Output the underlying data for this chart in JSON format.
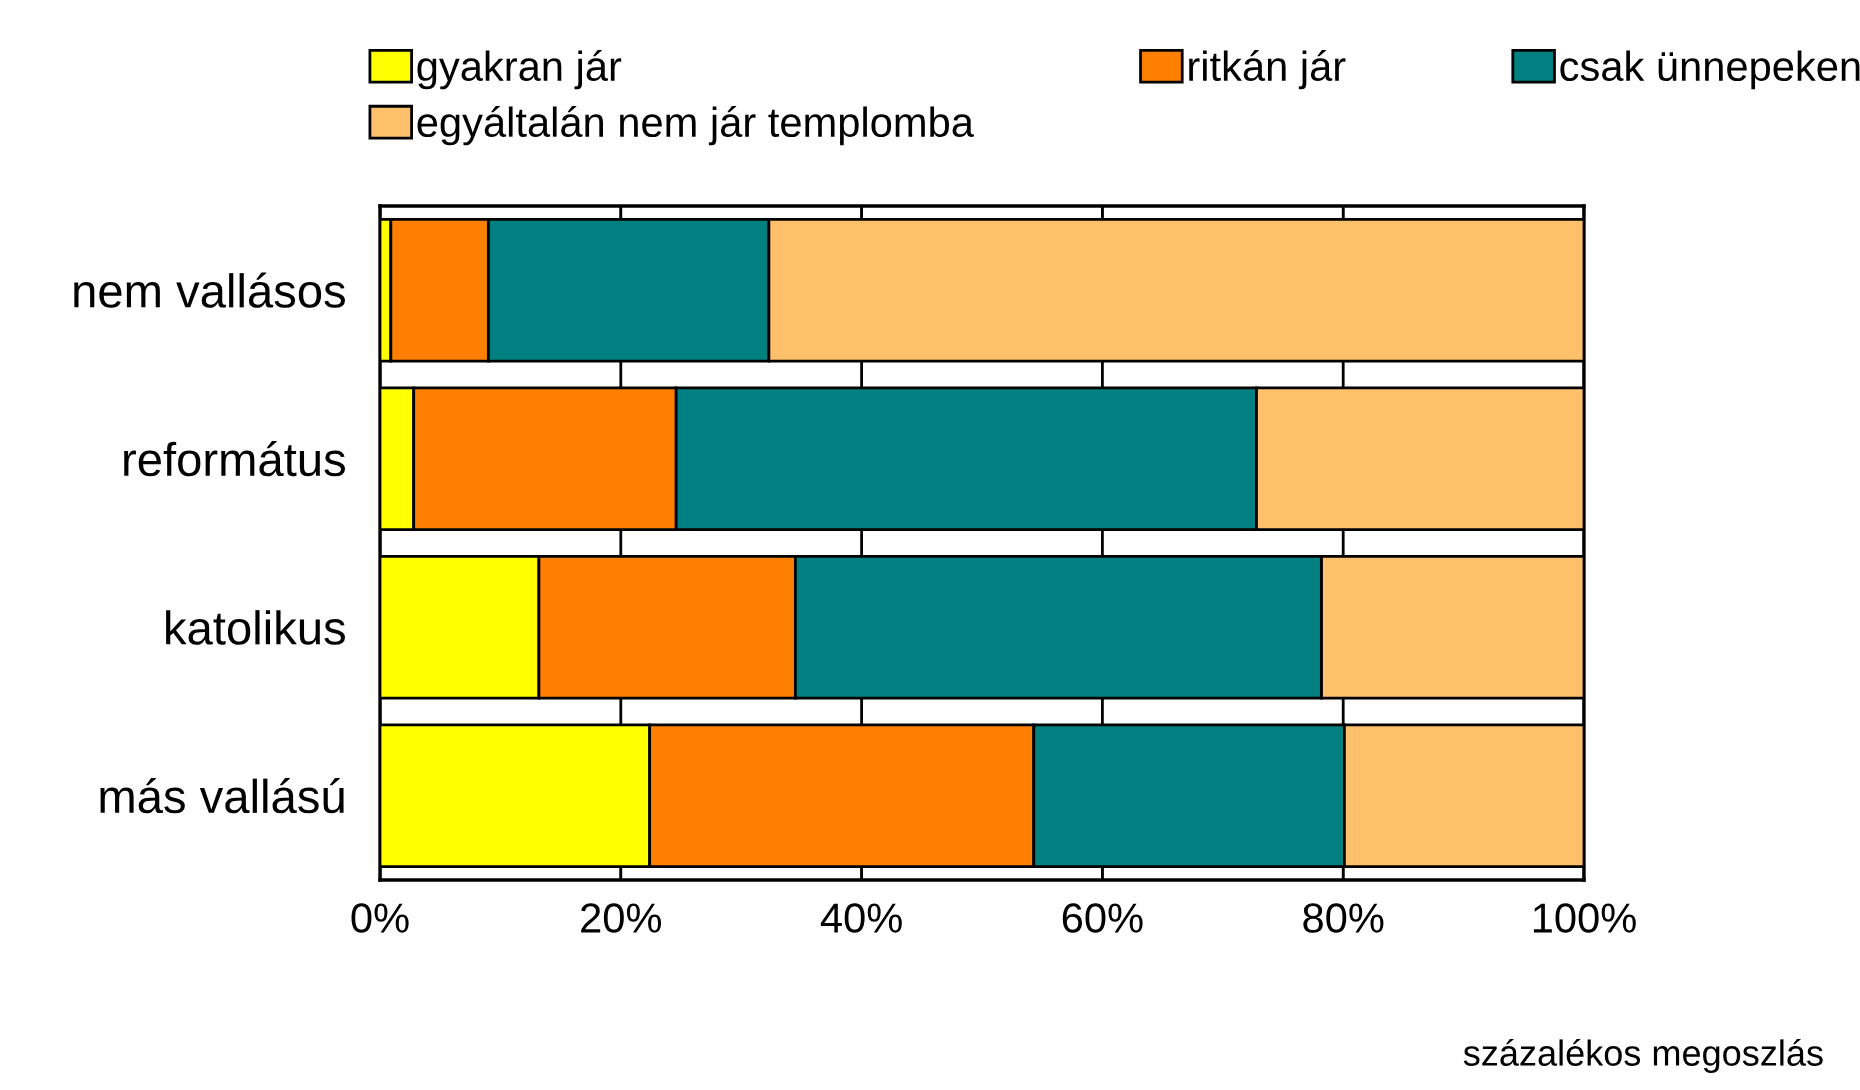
{
  "chart_data": {
    "type": "bar",
    "orientation": "horizontal",
    "stacked": true,
    "categories": [
      "nem vallásos",
      "református",
      "katolikus",
      "más vallású"
    ],
    "series": [
      {
        "name": "gyakran jár",
        "color": "#ffff00",
        "values": [
          0.9,
          2.8,
          13.2,
          22.4
        ]
      },
      {
        "name": "ritkán jár",
        "color": "#ff8000",
        "values": [
          8.1,
          21.8,
          21.3,
          31.9
        ]
      },
      {
        "name": "csak ünnepeken",
        "color": "#008080",
        "values": [
          23.3,
          48.2,
          43.7,
          25.8
        ]
      },
      {
        "name": "egyáltalán nem jár templomba",
        "color": "#ffc06c",
        "values": [
          67.7,
          27.2,
          21.8,
          19.9
        ]
      }
    ],
    "xlim": [
      0,
      100
    ],
    "xticks": [
      {
        "value": 0,
        "label": "0%"
      },
      {
        "value": 20,
        "label": "20%"
      },
      {
        "value": 40,
        "label": "40%"
      },
      {
        "value": 60,
        "label": "60%"
      },
      {
        "value": 80,
        "label": "80%"
      },
      {
        "value": 100,
        "label": "100%"
      }
    ],
    "grid": "x",
    "legend": "top",
    "annotations": [
      "százalékos megoszlás"
    ]
  }
}
